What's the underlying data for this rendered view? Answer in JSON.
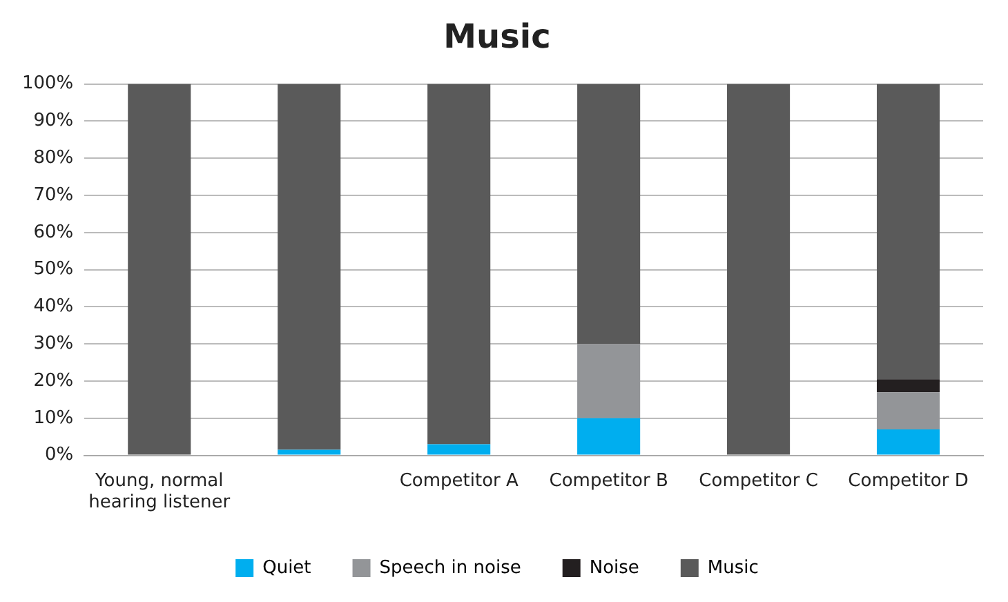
{
  "chart_data": {
    "type": "bar",
    "title": "Music",
    "stacked": true,
    "grid": "y",
    "legend": "bottom",
    "categories": [
      "Young, normal hearing listener",
      null,
      "Competitor A",
      "Competitor B",
      "Competitor C",
      "Competitor D"
    ],
    "series": [
      {
        "name": "Quiet",
        "color": "#00aeef",
        "values": [
          0,
          1.5,
          3,
          10,
          0,
          7
        ]
      },
      {
        "name": "Speech in noise",
        "color": "#939598",
        "values": [
          0,
          0,
          0,
          20,
          0,
          10
        ]
      },
      {
        "name": "Noise",
        "color": "#231f20",
        "values": [
          0,
          0,
          0,
          0,
          0,
          3.5
        ]
      },
      {
        "name": "Music",
        "color": "#5a5a5a",
        "values": [
          100,
          98.5,
          97,
          70,
          100,
          79.5
        ]
      }
    ],
    "ylim": [
      0,
      100
    ],
    "yticks": [
      {
        "value": 0,
        "label": "0%"
      },
      {
        "value": 10,
        "label": "10%"
      },
      {
        "value": 20,
        "label": "20%"
      },
      {
        "value": 30,
        "label": "30%"
      },
      {
        "value": 40,
        "label": "40%"
      },
      {
        "value": 50,
        "label": "50%"
      },
      {
        "value": 60,
        "label": "60%"
      },
      {
        "value": 70,
        "label": "70%"
      },
      {
        "value": 80,
        "label": "80%"
      },
      {
        "value": 90,
        "label": "90%"
      },
      {
        "value": 100,
        "label": "100%"
      }
    ]
  }
}
